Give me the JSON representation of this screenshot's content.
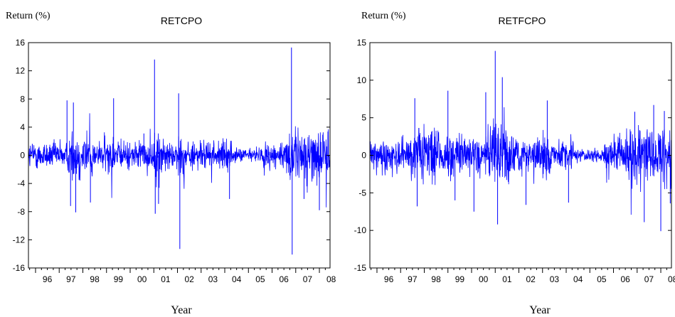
{
  "chart_data": [
    {
      "type": "line",
      "title": "RETCPO",
      "ylabel": "Return (%)",
      "xlabel": "Year",
      "ylim": [
        -16,
        16
      ],
      "yticks": [
        -16,
        -12,
        -8,
        -4,
        0,
        4,
        8,
        12,
        16
      ],
      "xticks": [
        "96",
        "97",
        "98",
        "99",
        "00",
        "01",
        "02",
        "03",
        "04",
        "05",
        "06",
        "07",
        "08"
      ],
      "xlim": [
        1995.7,
        2008.45
      ],
      "grid": false,
      "color": "#0000ff",
      "noise_amplitude": 1.5,
      "volatility_bands": [
        {
          "start": 1997.4,
          "end": 1998.4,
          "scale": 1.9
        },
        {
          "start": 1998.9,
          "end": 1999.3,
          "scale": 1.5
        },
        {
          "start": 2000.9,
          "end": 2001.5,
          "scale": 1.6
        },
        {
          "start": 2001.9,
          "end": 2002.3,
          "scale": 1.5
        },
        {
          "start": 2004.3,
          "end": 2005.6,
          "scale": 0.5
        },
        {
          "start": 2006.7,
          "end": 2008.45,
          "scale": 1.9
        }
      ],
      "spikes": [
        {
          "x": 1997.33,
          "y": 7.8
        },
        {
          "x": 1997.48,
          "y": -7.2
        },
        {
          "x": 1997.6,
          "y": 7.5
        },
        {
          "x": 1997.7,
          "y": -8.1
        },
        {
          "x": 1998.32,
          "y": -6.7
        },
        {
          "x": 1999.3,
          "y": 8.1
        },
        {
          "x": 2000.58,
          "y": 3.1
        },
        {
          "x": 2001.03,
          "y": 13.6
        },
        {
          "x": 2001.06,
          "y": -8.3
        },
        {
          "x": 2001.2,
          "y": -6.9
        },
        {
          "x": 2002.05,
          "y": 8.8
        },
        {
          "x": 2002.1,
          "y": -13.3
        },
        {
          "x": 2004.2,
          "y": -6.2
        },
        {
          "x": 2006.82,
          "y": 15.3
        },
        {
          "x": 2006.85,
          "y": -14.1
        },
        {
          "x": 2007.35,
          "y": -6.2
        },
        {
          "x": 2008.0,
          "y": -7.8
        },
        {
          "x": 2008.45,
          "y": -4.6
        }
      ]
    },
    {
      "type": "line",
      "title": "RETFCPO",
      "ylabel": "Return (%)",
      "xlabel": "Year",
      "ylim": [
        -15,
        15
      ],
      "yticks": [
        -15,
        -10,
        -5,
        0,
        5,
        10,
        15
      ],
      "xticks": [
        "96",
        "97",
        "98",
        "99",
        "00",
        "01",
        "02",
        "03",
        "04",
        "05",
        "06",
        "07",
        "08"
      ],
      "xlim": [
        1995.7,
        2008.45
      ],
      "grid": false,
      "color": "#0000ff",
      "noise_amplitude": 1.6,
      "volatility_bands": [
        {
          "start": 1997.4,
          "end": 1998.6,
          "scale": 1.7
        },
        {
          "start": 1998.8,
          "end": 1999.8,
          "scale": 1.4
        },
        {
          "start": 2000.6,
          "end": 2001.7,
          "scale": 1.9
        },
        {
          "start": 2002.8,
          "end": 2003.3,
          "scale": 1.4
        },
        {
          "start": 2004.3,
          "end": 2005.6,
          "scale": 0.45
        },
        {
          "start": 2006.5,
          "end": 2008.45,
          "scale": 1.8
        }
      ],
      "spikes": [
        {
          "x": 1997.6,
          "y": 7.6
        },
        {
          "x": 1997.7,
          "y": -6.8
        },
        {
          "x": 1999.0,
          "y": 8.6
        },
        {
          "x": 1999.3,
          "y": -6.0
        },
        {
          "x": 2000.1,
          "y": -7.5
        },
        {
          "x": 2000.6,
          "y": 8.4
        },
        {
          "x": 2001.0,
          "y": 13.9
        },
        {
          "x": 2001.1,
          "y": -9.2
        },
        {
          "x": 2001.3,
          "y": 10.4
        },
        {
          "x": 2002.3,
          "y": -6.6
        },
        {
          "x": 2003.2,
          "y": 7.3
        },
        {
          "x": 2004.1,
          "y": -6.3
        },
        {
          "x": 2006.9,
          "y": 5.8
        },
        {
          "x": 2007.3,
          "y": -8.9
        },
        {
          "x": 2007.7,
          "y": 6.7
        },
        {
          "x": 2008.0,
          "y": -10.1
        },
        {
          "x": 2008.15,
          "y": 5.9
        },
        {
          "x": 2008.4,
          "y": -6.4
        }
      ]
    }
  ]
}
